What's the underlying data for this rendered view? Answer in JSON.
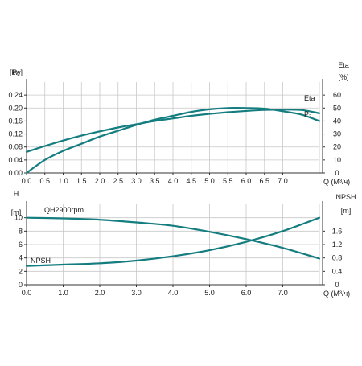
{
  "chart_data": [
    {
      "type": "line",
      "x_range": [
        0,
        8
      ],
      "x_ticks": [
        "0.0",
        "0.5",
        "1.0",
        "1.5",
        "2.0",
        "2.5",
        "3.0",
        "3.5",
        "4.0",
        "4.5",
        "5.0",
        "5.5",
        "6.0",
        "6.5",
        "7.0"
      ],
      "x_tick_values": [
        0,
        0.5,
        1,
        1.5,
        2,
        2.5,
        3,
        3.5,
        4,
        4.5,
        5,
        5.5,
        6,
        6.5,
        7
      ],
      "xlabel": "Q (M³/ч)",
      "left_axis": {
        "label_top": "P₂",
        "label_unit": "[kw]",
        "ylim": [
          0,
          0.28
        ],
        "ticks": [
          "0.00",
          "0.04",
          "0.08",
          "0.12",
          "0.16",
          "0.20",
          "0.24"
        ],
        "tick_values": [
          0,
          0.04,
          0.08,
          0.12,
          0.16,
          0.2,
          0.24
        ]
      },
      "right_axis": {
        "label_top": "Eta",
        "label_unit": "[%]",
        "ylim": [
          0,
          70
        ],
        "ticks": [
          "0",
          "10",
          "20",
          "30",
          "40",
          "50",
          "60"
        ],
        "tick_values": [
          0,
          10,
          20,
          30,
          40,
          50,
          60
        ]
      },
      "grid": true,
      "series": [
        {
          "name": "Eta",
          "axis": "right",
          "color": "#147d7f",
          "x": [
            0,
            0.5,
            1,
            1.5,
            2,
            2.5,
            3,
            3.5,
            4,
            4.5,
            5,
            5.5,
            6,
            6.5,
            7,
            7.5,
            8
          ],
          "y": [
            0,
            10,
            17,
            22.5,
            28,
            32.5,
            37,
            41,
            44,
            47,
            49,
            50,
            50,
            49.5,
            47.5,
            45,
            40
          ]
        },
        {
          "name": "P₂",
          "axis": "left",
          "color": "#147d7f",
          "x": [
            0,
            0.5,
            1,
            1.5,
            2,
            2.5,
            3,
            3.5,
            4,
            4.5,
            5,
            5.5,
            6,
            6.5,
            7,
            7.5,
            8
          ],
          "y": [
            0.065,
            0.083,
            0.1,
            0.115,
            0.128,
            0.14,
            0.15,
            0.16,
            0.168,
            0.176,
            0.182,
            0.187,
            0.191,
            0.194,
            0.195,
            0.194,
            0.184
          ]
        }
      ]
    },
    {
      "type": "line",
      "x_range": [
        0,
        8
      ],
      "x_ticks": [
        "0.0",
        "1.0",
        "2.0",
        "3.0",
        "4.0",
        "5.0",
        "6.0",
        "7.0"
      ],
      "x_tick_values": [
        0,
        1,
        2,
        3,
        4,
        5,
        6,
        7
      ],
      "xlabel": "Q (M³/ч)",
      "left_axis": {
        "label_top": "H",
        "label_unit": "[m]",
        "ylim": [
          0,
          12
        ],
        "ticks": [
          "0",
          "2",
          "4",
          "6",
          "8",
          "10"
        ],
        "tick_values": [
          0,
          2,
          4,
          6,
          8,
          10
        ]
      },
      "right_axis": {
        "label_top": "NPSH",
        "label_unit": "[m]",
        "ylim": [
          0,
          2.4
        ],
        "ticks": [
          "0",
          "0.4",
          "0.8",
          "1.2",
          "1.6"
        ],
        "tick_values": [
          0,
          0.4,
          0.8,
          1.2,
          1.6
        ]
      },
      "grid": true,
      "series": [
        {
          "name": "QH2900rpm",
          "axis": "left",
          "color": "#147d7f",
          "x": [
            0,
            1,
            2,
            3,
            4,
            5,
            6,
            7,
            8
          ],
          "y": [
            10,
            9.9,
            9.7,
            9.3,
            8.8,
            7.9,
            6.8,
            5.5,
            3.9
          ]
        },
        {
          "name": "NPSH",
          "axis": "right",
          "color": "#147d7f",
          "x": [
            0,
            1,
            2,
            3,
            4,
            5,
            6,
            7,
            8
          ],
          "y": [
            0.56,
            0.6,
            0.64,
            0.72,
            0.85,
            1.03,
            1.28,
            1.6,
            2.0
          ]
        }
      ]
    }
  ]
}
